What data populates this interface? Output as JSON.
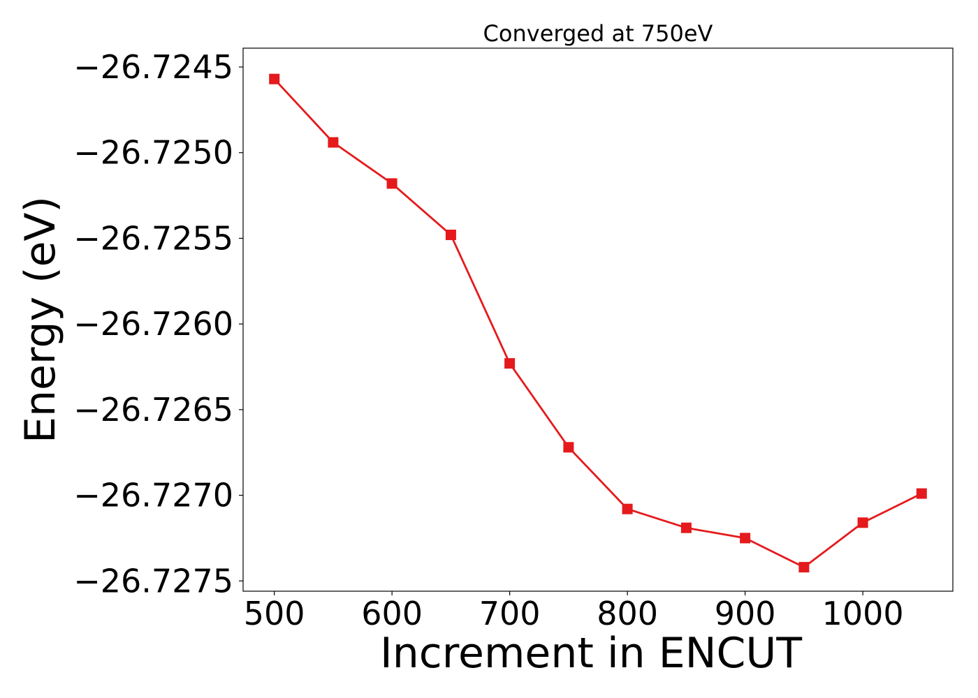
{
  "chart_data": {
    "type": "line",
    "title": "Converged at 750eV",
    "xlabel": "Increment in ENCUT",
    "ylabel": "Energy (eV)",
    "xlim": [
      473.5,
      1076.5
    ],
    "ylim": [
      -26.72756,
      -26.72439
    ],
    "xticks": [
      500,
      600,
      700,
      800,
      900,
      1000
    ],
    "xtick_labels": [
      "500",
      "600",
      "700",
      "800",
      "900",
      "1000"
    ],
    "yticks": [
      -26.7245,
      -26.725,
      -26.7255,
      -26.726,
      -26.7265,
      -26.727,
      -26.7275
    ],
    "ytick_labels": [
      "−26.7245",
      "−26.7250",
      "−26.7255",
      "−26.7260",
      "−26.7265",
      "−26.7270",
      "−26.7275"
    ],
    "grid": false,
    "series": [
      {
        "color": "#e41a1c",
        "marker": "square",
        "x": [
          500,
          550,
          600,
          650,
          700,
          750,
          800,
          850,
          900,
          950,
          1000,
          1050
        ],
        "y": [
          -26.72457,
          -26.72494,
          -26.72518,
          -26.72548,
          -26.72623,
          -26.72672,
          -26.72708,
          -26.72719,
          -26.72725,
          -26.72742,
          -26.72716,
          -26.72699
        ]
      }
    ]
  }
}
